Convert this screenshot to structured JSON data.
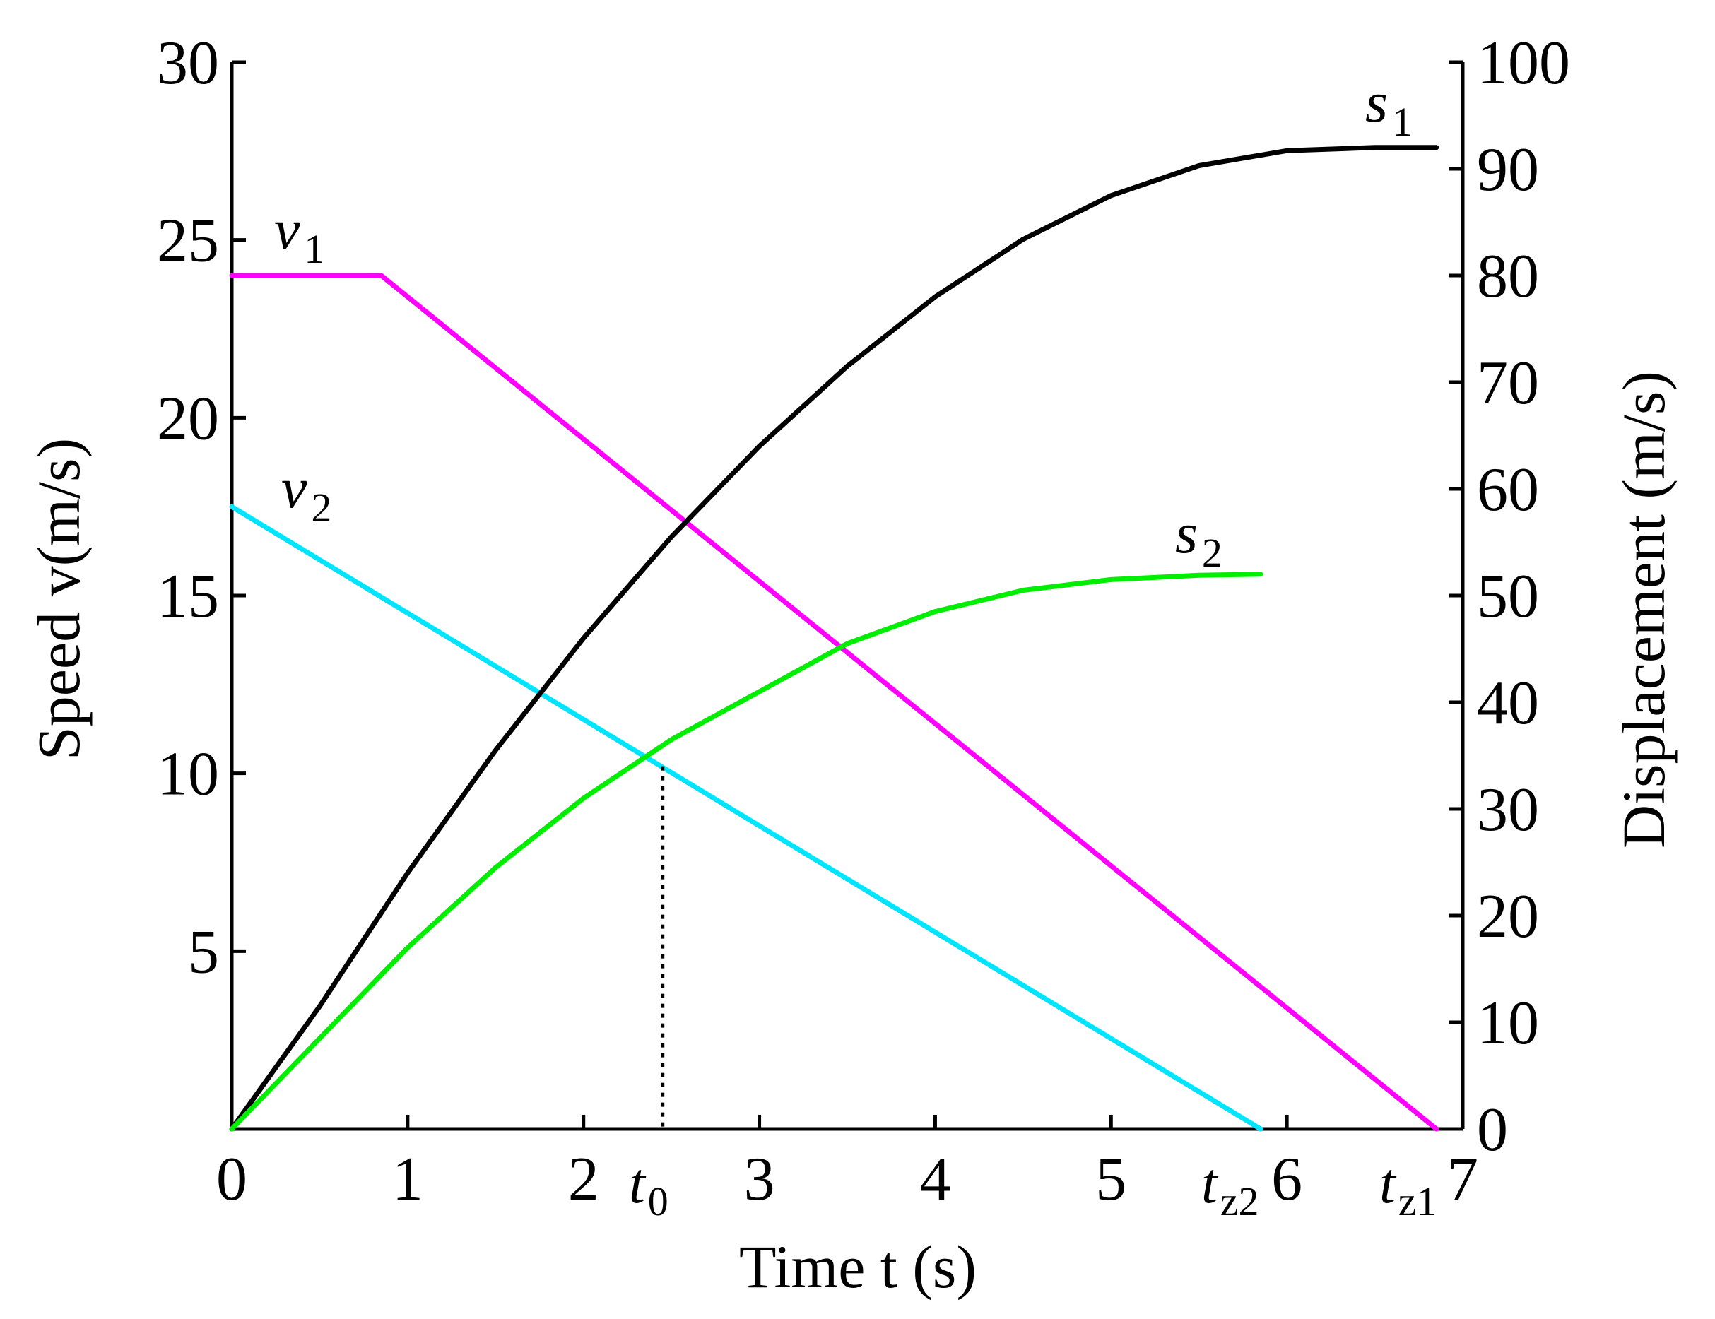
{
  "chart_data": {
    "type": "line",
    "xlabel": "Time t (s)",
    "ylabel": "Speed v(m/s)",
    "y2label": "Displacement (m/s)",
    "xlim": [
      0,
      7
    ],
    "ylim": [
      0,
      30
    ],
    "y2lim": [
      0,
      100
    ],
    "x_ticks": [
      0,
      1,
      2,
      3,
      4,
      5,
      6,
      7
    ],
    "x_tick_labels": [
      "0",
      "1",
      "2",
      "3",
      "4",
      "5",
      "6",
      "7"
    ],
    "y_ticks": [
      5,
      10,
      15,
      20,
      25,
      30
    ],
    "y_tick_labels": [
      "5",
      "10",
      "15",
      "20",
      "25",
      "30"
    ],
    "y2_ticks": [
      0,
      10,
      20,
      30,
      40,
      50,
      60,
      70,
      80,
      90,
      100
    ],
    "y2_tick_labels": [
      "0",
      "10",
      "20",
      "30",
      "40",
      "50",
      "60",
      "70",
      "80",
      "90",
      "100"
    ],
    "grid": false,
    "legend": "none",
    "series": [
      {
        "name": "v1",
        "label_main": "v",
        "label_sub": "1",
        "axis": "left",
        "color": "#ff00ff",
        "x": [
          0,
          0.85,
          0.9,
          6.85
        ],
        "y": [
          24,
          24,
          23.8,
          0
        ]
      },
      {
        "name": "v2",
        "label_main": "v",
        "label_sub": "2",
        "axis": "left",
        "color": "#00e5ff",
        "x": [
          0,
          5.85
        ],
        "y": [
          17.5,
          0
        ]
      },
      {
        "name": "s1",
        "label_main": "s",
        "label_sub": "1",
        "axis": "right",
        "color": "#000000",
        "x": [
          0,
          0.5,
          1,
          1.5,
          2,
          2.5,
          3,
          3.5,
          4,
          4.5,
          5,
          5.5,
          6,
          6.5,
          6.85
        ],
        "y": [
          0,
          11.5,
          24,
          35.5,
          46,
          55.5,
          64,
          71.5,
          78,
          83.4,
          87.5,
          90.3,
          91.7,
          92,
          92
        ]
      },
      {
        "name": "s2",
        "label_main": "s",
        "label_sub": "2",
        "axis": "right",
        "color": "#00ee00",
        "x": [
          0,
          0.5,
          1,
          1.5,
          2,
          2.5,
          3,
          3.5,
          4,
          4.5,
          5,
          5.5,
          5.85
        ],
        "y": [
          0,
          8.5,
          17,
          24.5,
          31,
          36.5,
          41,
          45.5,
          48.5,
          50.5,
          51.5,
          51.9,
          52
        ]
      }
    ],
    "markers": [
      {
        "label_main": "t",
        "label_sub": "0",
        "x": 2.45,
        "y": 10.2
      },
      {
        "label_main": "t",
        "label_sub": "z2",
        "x": 5.85
      },
      {
        "label_main": "t",
        "label_sub": "z1",
        "x": 6.85
      }
    ]
  }
}
